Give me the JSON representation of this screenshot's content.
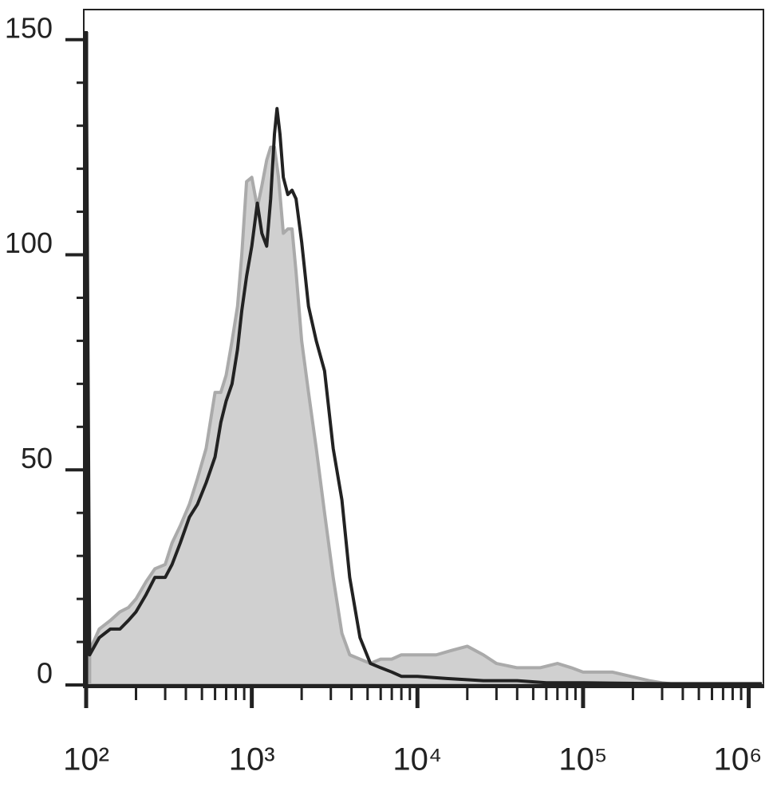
{
  "chart_data": {
    "type": "histogram-overlay",
    "xscale": "log",
    "xlim": [
      100,
      1200000
    ],
    "ylim": [
      0,
      157
    ],
    "xticks": [
      {
        "value": 100,
        "label": "10²"
      },
      {
        "value": 1000,
        "label": "10³"
      },
      {
        "value": 10000,
        "label": "10⁴"
      },
      {
        "value": 100000,
        "label": "10⁵"
      },
      {
        "value": 1000000,
        "label": "10⁶"
      }
    ],
    "xminorticks": [
      200,
      300,
      400,
      500,
      600,
      700,
      800,
      900,
      2000,
      3000,
      4000,
      5000,
      6000,
      7000,
      8000,
      9000,
      20000,
      30000,
      40000,
      50000,
      60000,
      70000,
      80000,
      90000,
      200000,
      300000,
      400000,
      500000,
      600000,
      700000,
      800000,
      900000
    ],
    "yticks": [
      0,
      50,
      100,
      150
    ],
    "yminorticks": [
      10,
      20,
      30,
      40,
      60,
      70,
      80,
      90,
      110,
      120,
      130,
      140
    ],
    "series": [
      {
        "style": "filled",
        "color": "#d0d0d0",
        "edge": "#aaaaaa",
        "x": [
          105,
          120,
          140,
          160,
          180,
          200,
          230,
          260,
          300,
          330,
          370,
          420,
          470,
          530,
          600,
          650,
          700,
          760,
          820,
          870,
          930,
          1000,
          1080,
          1150,
          1230,
          1300,
          1370,
          1450,
          1550,
          1650,
          1750,
          1850,
          2000,
          2200,
          2450,
          2750,
          3100,
          3500,
          3900,
          4500,
          5200,
          6000,
          7000,
          8000,
          10000,
          13000,
          16000,
          20000,
          25000,
          30000,
          40000,
          55000,
          70000,
          85000,
          100000,
          150000,
          250000,
          300000,
          400000,
          1200000
        ],
        "values": [
          8,
          13,
          15,
          17,
          18,
          20,
          24,
          27,
          28,
          33,
          37,
          42,
          48,
          55,
          68,
          68,
          72,
          80,
          88,
          100,
          117,
          118,
          111,
          116,
          122,
          125,
          125,
          118,
          105,
          106,
          106,
          96,
          80,
          68,
          55,
          40,
          25,
          12,
          7,
          6,
          5,
          6,
          6,
          7,
          7,
          7,
          8,
          9,
          7,
          5,
          4,
          4,
          5,
          4,
          3,
          3,
          1,
          0.5,
          0,
          0
        ]
      },
      {
        "style": "line",
        "color": "#222222",
        "x": [
          100,
          105,
          120,
          140,
          160,
          180,
          200,
          230,
          260,
          300,
          330,
          370,
          420,
          470,
          530,
          600,
          650,
          700,
          760,
          820,
          870,
          930,
          1000,
          1080,
          1150,
          1230,
          1300,
          1370,
          1420,
          1480,
          1550,
          1650,
          1750,
          1850,
          2000,
          2200,
          2450,
          2750,
          3100,
          3500,
          3900,
          4500,
          5200,
          6000,
          7000,
          8000,
          10000,
          15000,
          25000,
          40000,
          60000,
          100000,
          300000,
          1200000
        ],
        "values": [
          152,
          7,
          11,
          13,
          13,
          15,
          17,
          21,
          25,
          25,
          28,
          33,
          39,
          42,
          47,
          53,
          61,
          66,
          70,
          78,
          87,
          95,
          102,
          112,
          105,
          102,
          113,
          128,
          134,
          128,
          118,
          114,
          115,
          113,
          103,
          88,
          80,
          73,
          55,
          43,
          25,
          11,
          5,
          4,
          3,
          2,
          2,
          1.5,
          1,
          1,
          0.5,
          0.5,
          0.3,
          0.3
        ]
      }
    ]
  }
}
